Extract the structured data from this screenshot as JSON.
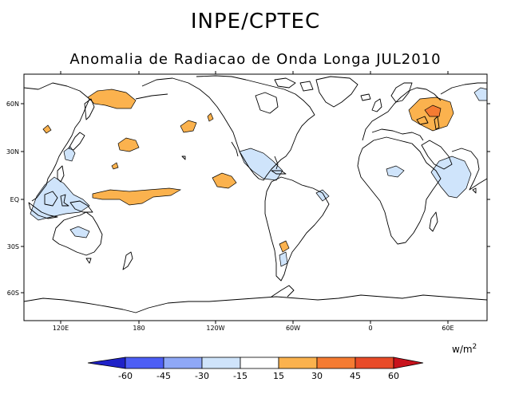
{
  "header": {
    "organization": "INPE/CPTEC",
    "title": "Anomalia de Radiacao de Onda Longa JUL2010"
  },
  "map": {
    "lon_ticks": [
      "120E",
      "180",
      "120W",
      "60W",
      "0",
      "60E"
    ],
    "lat_ticks": [
      "60N",
      "30N",
      "EQ",
      "30S",
      "60S"
    ]
  },
  "colorbar": {
    "units_base": "w/m",
    "units_exp": "2",
    "ticks": [
      "-60",
      "-45",
      "-30",
      "-15",
      "15",
      "30",
      "45",
      "60"
    ],
    "colors": [
      "#1f22c8",
      "#4d5ef5",
      "#8fa8f7",
      "#cfe4fb",
      "#ffffff",
      "#fbb24e",
      "#f57b32",
      "#e84b28",
      "#c8121c"
    ]
  }
}
